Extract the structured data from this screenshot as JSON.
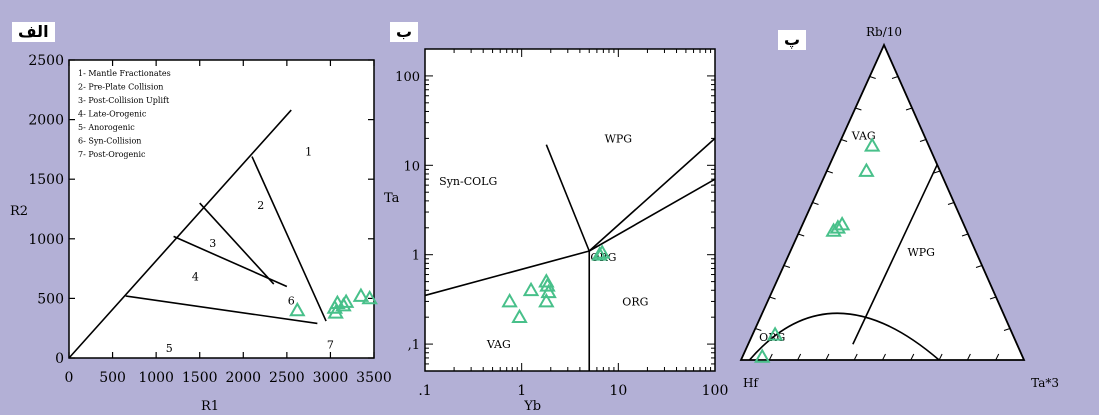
{
  "colors": {
    "background": "#b3b0d6",
    "plot_area": "#ffffff",
    "marker": "#48c08a",
    "axis": "#000000"
  },
  "panels": {
    "a": {
      "tag": "الف"
    },
    "b": {
      "tag": "ب"
    },
    "c": {
      "tag": "پ"
    }
  },
  "chart_data": [
    {
      "type": "scatter",
      "panel": "الف",
      "title": "",
      "xlabel": "R1",
      "ylabel": "R2",
      "xlim": [
        0,
        3500
      ],
      "ylim": [
        0,
        2500
      ],
      "x_ticks": [
        0,
        500,
        1000,
        1500,
        2000,
        2500,
        3000,
        3500
      ],
      "y_ticks": [
        0,
        500,
        1000,
        1500,
        2000,
        2500
      ],
      "legend": [
        "1- Mantle Fractionates",
        "2- Pre-Plate Collision",
        "3- Post-Collision Uplift",
        "4- Late-Orogenic",
        "5- Anorogenic",
        "6- Syn-Collision",
        "7- Post-Orogenic"
      ],
      "field_labels": [
        {
          "text": "1",
          "x": 2750,
          "y": 1700
        },
        {
          "text": "2",
          "x": 2200,
          "y": 1250
        },
        {
          "text": "3",
          "x": 1650,
          "y": 930
        },
        {
          "text": "4",
          "x": 1450,
          "y": 650
        },
        {
          "text": "5",
          "x": 1150,
          "y": 50
        },
        {
          "text": "6",
          "x": 2550,
          "y": 450
        },
        {
          "text": "7",
          "x": 3000,
          "y": 80
        }
      ],
      "boundaries": [
        [
          [
            0,
            0
          ],
          [
            2550,
            2080
          ]
        ],
        [
          [
            650,
            520
          ],
          [
            2850,
            290
          ]
        ],
        [
          [
            1200,
            1020
          ],
          [
            2500,
            600
          ]
        ],
        [
          [
            1500,
            1300
          ],
          [
            2350,
            620
          ]
        ],
        [
          [
            2100,
            1690
          ],
          [
            2950,
            310
          ]
        ]
      ],
      "series": [
        {
          "values": [
            {
              "x": 2620,
              "y": 400
            },
            {
              "x": 3050,
              "y": 420
            },
            {
              "x": 3080,
              "y": 460
            },
            {
              "x": 3150,
              "y": 440
            },
            {
              "x": 3180,
              "y": 470
            },
            {
              "x": 3060,
              "y": 380
            },
            {
              "x": 3350,
              "y": 520
            },
            {
              "x": 3450,
              "y": 500
            }
          ]
        }
      ]
    },
    {
      "type": "scatter",
      "panel": "ب",
      "title": "",
      "xlabel": "Yb",
      "ylabel": "Ta",
      "x_scale": "log",
      "y_scale": "log",
      "xlim": [
        0.1,
        100
      ],
      "ylim": [
        0.05,
        200
      ],
      "x_ticks": [
        0.1,
        1,
        10,
        100
      ],
      "x_tick_labels": [
        ".1",
        "1",
        "10",
        "100"
      ],
      "y_ticks": [
        0.1,
        1,
        10,
        100
      ],
      "y_tick_labels": [
        ",1",
        "1",
        "10",
        "100"
      ],
      "field_labels": [
        {
          "text": "WPG",
          "x": 10,
          "y": 18
        },
        {
          "text": "Syn-COLG",
          "x": 0.28,
          "y": 6
        },
        {
          "text": "ORG",
          "x": 15,
          "y": 0.27
        },
        {
          "text": "VAG",
          "x": 0.58,
          "y": 0.09
        },
        {
          "text": "ORG",
          "x": 7,
          "y": 0.85
        }
      ],
      "boundaries": [
        [
          [
            0.1,
            0.35
          ],
          [
            5,
            1.1
          ]
        ],
        [
          [
            5,
            1.1
          ],
          [
            100,
            20
          ]
        ],
        [
          [
            1.8,
            17
          ],
          [
            5,
            1.1
          ]
        ],
        [
          [
            5,
            1.1
          ],
          [
            5,
            0.05
          ]
        ],
        [
          [
            5,
            1.1
          ],
          [
            100,
            7
          ]
        ]
      ],
      "series": [
        {
          "values": [
            {
              "x": 0.75,
              "y": 0.3
            },
            {
              "x": 0.95,
              "y": 0.2
            },
            {
              "x": 1.25,
              "y": 0.4
            },
            {
              "x": 1.8,
              "y": 0.5
            },
            {
              "x": 1.85,
              "y": 0.45
            },
            {
              "x": 1.9,
              "y": 0.38
            },
            {
              "x": 1.8,
              "y": 0.3
            },
            {
              "x": 6.4,
              "y": 1.0
            },
            {
              "x": 6.8,
              "y": 1.05
            }
          ]
        }
      ]
    },
    {
      "type": "scatter",
      "panel": "پ",
      "title": "",
      "subtype": "ternary",
      "vertices": [
        "Rb/10",
        "Hf",
        "Ta*3"
      ],
      "field_labels": [
        {
          "text": "VAG",
          "rb": 0.7,
          "hf": 0.22,
          "ta": 0.08
        },
        {
          "text": "WPG",
          "rb": 0.33,
          "hf": 0.2,
          "ta": 0.47
        },
        {
          "text": "ORG",
          "rb": 0.06,
          "hf": 0.86,
          "ta": 0.08
        }
      ],
      "series": [
        {
          "values": [
            {
              "rb": 0.68,
              "hf": 0.2,
              "ta": 0.12
            },
            {
              "rb": 0.6,
              "hf": 0.26,
              "ta": 0.14
            },
            {
              "rb": 0.42,
              "hf": 0.45,
              "ta": 0.13
            },
            {
              "rb": 0.41,
              "hf": 0.47,
              "ta": 0.12
            },
            {
              "rb": 0.43,
              "hf": 0.43,
              "ta": 0.14
            },
            {
              "rb": 0.08,
              "hf": 0.84,
              "ta": 0.08
            },
            {
              "rb": 0.01,
              "hf": 0.92,
              "ta": 0.07
            }
          ]
        }
      ]
    }
  ]
}
